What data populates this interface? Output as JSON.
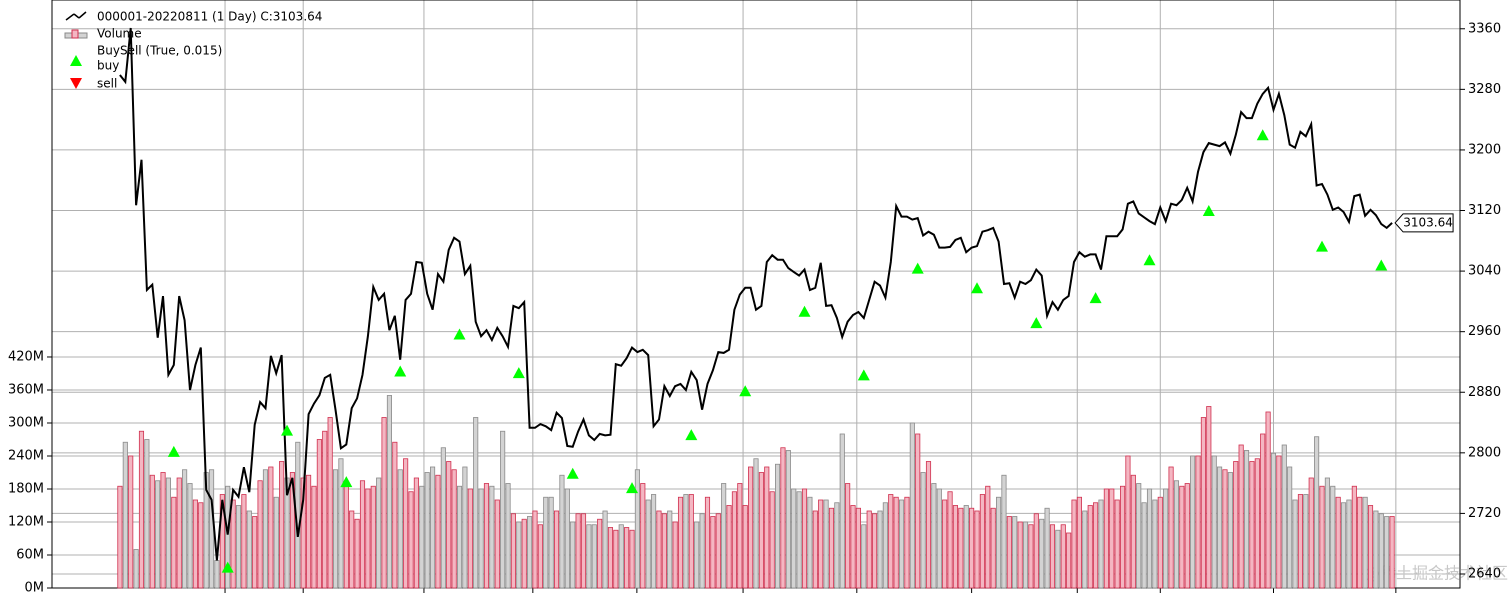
{
  "chart_data": {
    "type": "line",
    "indicator": "BuySell (True, 0.015)",
    "watermark": "@稀土掘金技术社区",
    "grid": true,
    "legend": "upper left",
    "xlim": [
      -12.6,
      248.6
    ],
    "xticks": [
      19.5,
      34,
      56.4,
      76.6,
      95.9,
      115.6,
      136.7,
      158,
      177.6,
      193,
      214,
      236.7
    ],
    "ylim": [
      0,
      1069
    ],
    "yticks": [
      {
        "value": 0,
        "label": "0M"
      },
      {
        "value": 60,
        "label": "60M"
      },
      {
        "value": 120,
        "label": "120M"
      },
      {
        "value": 180,
        "label": "180M"
      },
      {
        "value": 240,
        "label": "240M"
      },
      {
        "value": 300,
        "label": "300M"
      },
      {
        "value": 360,
        "label": "360M"
      },
      {
        "value": 420,
        "label": "420M"
      }
    ],
    "y2lim": [
      2621.5,
      3398
    ],
    "y2ticks": [
      2640,
      2720,
      2800,
      2880,
      2960,
      3040,
      3120,
      3200,
      3280,
      3360
    ],
    "series": [
      {
        "name": "000001-20220811 (1 Day) C:3103.64",
        "color": "#000000",
        "axis": "y2",
        "values": [
          3299,
          3290,
          3361,
          3127,
          3187,
          3015,
          3022,
          2952,
          3007,
          2903,
          2916,
          3007,
          2975,
          2883,
          2916,
          2939,
          2751,
          2738,
          2658,
          2738,
          2692,
          2751,
          2742,
          2781,
          2748,
          2837,
          2867,
          2859,
          2928,
          2905,
          2929,
          2744,
          2767,
          2689,
          2738,
          2851,
          2865,
          2876,
          2899,
          2903,
          2857,
          2806,
          2811,
          2859,
          2872,
          2903,
          2954,
          3019,
          3002,
          3010,
          2962,
          2981,
          2923,
          3002,
          3010,
          3052,
          3051,
          3010,
          2989,
          3036,
          3026,
          3068,
          3084,
          3079,
          3036,
          3047,
          2973,
          2954,
          2962,
          2949,
          2965,
          2954,
          2940,
          2994,
          2991,
          2999,
          2833,
          2833,
          2838,
          2835,
          2830,
          2853,
          2846,
          2809,
          2808,
          2828,
          2844,
          2823,
          2817,
          2825,
          2823,
          2824,
          2917,
          2915,
          2925,
          2939,
          2933,
          2936,
          2929,
          2835,
          2844,
          2888,
          2875,
          2888,
          2891,
          2883,
          2907,
          2896,
          2857,
          2891,
          2909,
          2933,
          2932,
          2936,
          2989,
          3009,
          3018,
          3018,
          2989,
          2994,
          3052,
          3061,
          3055,
          3055,
          3044,
          3039,
          3034,
          3042,
          3015,
          3018,
          3051,
          2994,
          2995,
          2978,
          2953,
          2973,
          2982,
          2986,
          2978,
          3002,
          3026,
          3021,
          3005,
          3052,
          3126,
          3112,
          3112,
          3108,
          3110,
          3087,
          3092,
          3088,
          3071,
          3071,
          3072,
          3081,
          3084,
          3065,
          3071,
          3073,
          3092,
          3094,
          3097,
          3079,
          3023,
          3024,
          3005,
          3026,
          3023,
          3028,
          3042,
          3034,
          2981,
          2999,
          2989,
          3002,
          3007,
          3052,
          3065,
          3059,
          3062,
          3062,
          3042,
          3086,
          3086,
          3086,
          3095,
          3129,
          3132,
          3116,
          3111,
          3106,
          3102,
          3124,
          3106,
          3129,
          3127,
          3134,
          3150,
          3132,
          3171,
          3197,
          3209,
          3207,
          3205,
          3210,
          3195,
          3220,
          3250,
          3242,
          3242,
          3261,
          3274,
          3282,
          3253,
          3274,
          3246,
          3207,
          3203,
          3224,
          3218,
          3234,
          3153,
          3155,
          3141,
          3121,
          3124,
          3118,
          3105,
          3139,
          3141,
          3113,
          3121,
          3114,
          3102,
          3097,
          3103.64
        ]
      },
      {
        "name": "Volume",
        "type": "bar",
        "color": "#f4b6c2",
        "down_color": "#d3d3d3",
        "values": [
          185,
          265,
          240,
          70,
          285,
          270,
          205,
          195,
          210,
          200,
          165,
          200,
          215,
          190,
          160,
          155,
          210,
          215,
          50,
          170,
          185,
          160,
          150,
          170,
          140,
          130,
          195,
          215,
          220,
          165,
          230,
          200,
          210,
          265,
          200,
          205,
          185,
          270,
          285,
          310,
          215,
          235,
          185,
          140,
          125,
          195,
          180,
          185,
          200,
          310,
          350,
          265,
          215,
          235,
          175,
          200,
          185,
          210,
          220,
          205,
          255,
          230,
          215,
          185,
          220,
          180,
          310,
          180,
          190,
          185,
          160,
          285,
          190,
          135,
          120,
          125,
          130,
          140,
          115,
          165,
          165,
          140,
          205,
          180,
          120,
          135,
          135,
          115,
          115,
          125,
          140,
          110,
          105,
          115,
          110,
          105,
          215,
          190,
          160,
          170,
          140,
          135,
          140,
          120,
          165,
          170,
          170,
          120,
          135,
          165,
          130,
          135,
          190,
          150,
          175,
          190,
          150,
          220,
          235,
          210,
          220,
          175,
          225,
          255,
          250,
          180,
          175,
          180,
          165,
          140,
          160,
          160,
          145,
          155,
          280,
          190,
          150,
          145,
          115,
          140,
          135,
          140,
          155,
          170,
          165,
          160,
          165,
          300,
          280,
          210,
          230,
          190,
          180,
          160,
          175,
          150,
          145,
          150,
          145,
          140,
          170,
          185,
          145,
          165,
          205,
          130,
          130,
          120,
          120,
          115,
          135,
          125,
          145,
          115,
          105,
          115,
          100,
          160,
          165,
          140,
          150,
          155,
          160,
          180,
          180,
          160,
          185,
          240,
          205,
          190,
          155,
          180,
          160,
          165,
          180,
          220,
          195,
          185,
          190,
          240,
          240,
          310,
          330,
          240,
          220,
          215,
          210,
          230,
          260,
          250,
          230,
          235,
          280,
          320,
          245,
          240,
          260,
          220,
          160,
          170,
          170,
          200,
          275,
          185,
          200,
          185,
          165,
          155,
          160,
          185,
          165,
          165,
          150,
          140,
          135,
          130,
          130
        ]
      }
    ],
    "buy": {
      "name": "buy",
      "color": "#00ff00",
      "x": [
        10,
        20,
        31,
        42,
        52,
        63,
        74,
        84,
        95,
        106,
        116,
        127,
        138,
        148,
        159,
        170,
        181,
        191,
        202,
        212,
        223,
        234
      ],
      "values": [
        2802,
        2649,
        2830,
        2762,
        2908,
        2957,
        2906,
        2773,
        2754,
        2824,
        2882,
        2987,
        2903,
        3044,
        3018,
        2972,
        3005,
        3055,
        3120,
        3220,
        3073,
        3048
      ]
    },
    "sell": {
      "name": "sell",
      "color": "#ff0000",
      "x": [],
      "values": []
    }
  }
}
